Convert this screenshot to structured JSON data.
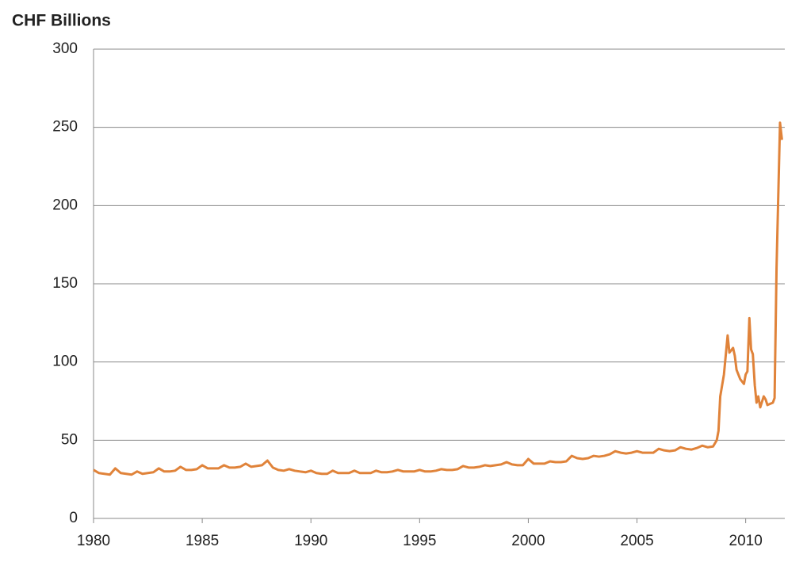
{
  "chart_data": {
    "type": "line",
    "title": "CHF Billions",
    "color": "#e0833a",
    "grid": true,
    "xlim": [
      1980,
      2011.8
    ],
    "xticks": [
      1980,
      1985,
      1990,
      1995,
      2000,
      2005,
      2010
    ],
    "ylim": [
      0,
      300
    ],
    "yticks": [
      0,
      50,
      100,
      150,
      200,
      250,
      300
    ],
    "x": [
      1980,
      1980.25,
      1980.5,
      1980.75,
      1981,
      1981.25,
      1981.5,
      1981.75,
      1982,
      1982.25,
      1982.5,
      1982.75,
      1983,
      1983.25,
      1983.5,
      1983.75,
      1984,
      1984.25,
      1984.5,
      1984.75,
      1985,
      1985.25,
      1985.5,
      1985.75,
      1986,
      1986.25,
      1986.5,
      1986.75,
      1987,
      1987.25,
      1987.5,
      1987.75,
      1988,
      1988.25,
      1988.5,
      1988.75,
      1989,
      1989.25,
      1989.5,
      1989.75,
      1990,
      1990.25,
      1990.5,
      1990.75,
      1991,
      1991.25,
      1991.5,
      1991.75,
      1992,
      1992.25,
      1992.5,
      1992.75,
      1993,
      1993.25,
      1993.5,
      1993.75,
      1994,
      1994.25,
      1994.5,
      1994.75,
      1995,
      1995.25,
      1995.5,
      1995.75,
      1996,
      1996.25,
      1996.5,
      1996.75,
      1997,
      1997.25,
      1997.5,
      1997.75,
      1998,
      1998.25,
      1998.5,
      1998.75,
      1999,
      1999.25,
      1999.5,
      1999.75,
      2000,
      2000.25,
      2000.5,
      2000.75,
      2001,
      2001.25,
      2001.5,
      2001.75,
      2002,
      2002.25,
      2002.5,
      2002.75,
      2003,
      2003.25,
      2003.5,
      2003.75,
      2004,
      2004.25,
      2004.5,
      2004.75,
      2005,
      2005.25,
      2005.5,
      2005.75,
      2006,
      2006.25,
      2006.5,
      2006.75,
      2007,
      2007.25,
      2007.5,
      2007.75,
      2008,
      2008.25,
      2008.5,
      2008.67,
      2008.75,
      2008.83,
      2009,
      2009.17,
      2009.25,
      2009.42,
      2009.5,
      2009.58,
      2009.75,
      2009.92,
      2010,
      2010.08,
      2010.17,
      2010.25,
      2010.33,
      2010.42,
      2010.5,
      2010.58,
      2010.67,
      2010.83,
      2010.92,
      2011,
      2011.25,
      2011.33,
      2011.42,
      2011.58,
      2011.67
    ],
    "values": [
      31,
      29,
      28.5,
      28,
      32,
      29,
      28.5,
      28,
      30,
      28.5,
      29,
      29.5,
      32,
      30,
      30,
      30.5,
      33,
      31,
      31,
      31.5,
      34,
      32,
      32,
      32,
      34,
      32.5,
      32.5,
      33,
      35,
      33,
      33.5,
      34,
      37,
      32.5,
      31,
      30.5,
      31.5,
      30.5,
      30,
      29.5,
      30.5,
      29,
      28.5,
      28.5,
      30.5,
      29,
      29,
      29,
      30.5,
      29,
      29,
      29,
      30.5,
      29.5,
      29.5,
      30,
      31,
      30,
      30,
      30,
      31,
      30,
      30,
      30.5,
      31.5,
      31,
      31,
      31.5,
      33.5,
      32.5,
      32.5,
      33,
      34,
      33.5,
      34,
      34.5,
      36,
      34.5,
      34,
      34,
      38,
      35,
      35,
      35,
      36.5,
      36,
      36,
      36.5,
      40,
      38.5,
      38,
      38.5,
      40,
      39.5,
      40,
      41,
      43,
      42,
      41.5,
      42,
      43,
      42,
      42,
      42,
      44.5,
      43.5,
      43,
      43.5,
      45.5,
      44.5,
      44,
      45,
      46.5,
      45.5,
      46,
      50,
      56,
      78,
      92,
      117,
      106,
      109,
      104,
      95,
      89,
      86,
      92,
      94,
      128,
      108,
      105,
      85,
      74,
      78,
      71,
      78,
      76,
      72.5,
      74,
      77,
      160,
      253,
      242
    ]
  }
}
